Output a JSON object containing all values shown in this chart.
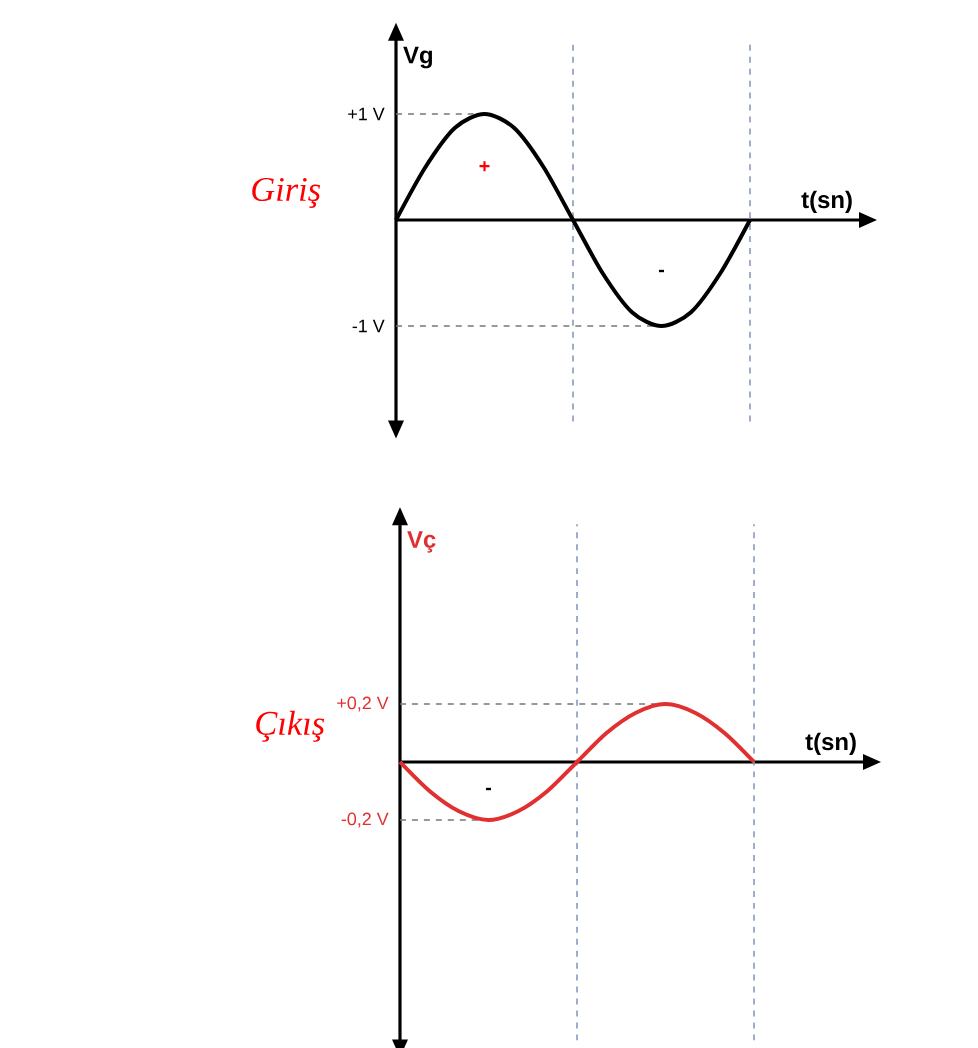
{
  "chart_data": [
    {
      "type": "line",
      "ylabel": "Vg",
      "xlabel": "t(sn)",
      "categories": [
        null,
        null,
        null,
        null,
        null,
        null,
        null,
        null,
        null,
        null,
        null,
        null,
        null
      ],
      "series": [
        {
          "color": "#000000",
          "values": [
            0,
            0.5,
            0.87,
            1,
            0.87,
            0.5,
            0,
            -0.5,
            -0.87,
            -1,
            -0.87,
            -0.5,
            0
          ]
        }
      ],
      "ylim": [
        -1.9,
        1.7
      ],
      "yticks": [
        {
          "value": 1,
          "label": "+1 V"
        },
        {
          "value": -1,
          "label": "-1 V"
        }
      ],
      "tick_labels": "y",
      "ref_lines": [
        {
          "axis": "y",
          "value": 1,
          "line_style": "dashed",
          "color": "#777777"
        },
        {
          "axis": "y",
          "value": -1,
          "line_style": "dashed",
          "color": "#777777"
        }
      ],
      "annotations": [
        "Giriş",
        "+",
        "-"
      ]
    },
    {
      "type": "line",
      "ylabel": "Vç",
      "xlabel": "t(sn)",
      "categories": [
        null,
        null,
        null,
        null,
        null,
        null,
        null,
        null,
        null,
        null,
        null,
        null,
        null
      ],
      "series": [
        {
          "color": "#e03030",
          "values": [
            0,
            -0.1,
            -0.17,
            -0.2,
            -0.17,
            -0.1,
            0,
            0.1,
            0.17,
            0.2,
            0.17,
            0.1,
            0
          ]
        }
      ],
      "ylim": [
        -0.96,
        0.82
      ],
      "yticks": [
        {
          "value": 0.2,
          "label": "+0,2 V"
        },
        {
          "value": -0.2,
          "label": "-0,2 V"
        }
      ],
      "tick_labels": "y",
      "ref_lines": [
        {
          "axis": "y",
          "value": 0.2,
          "line_style": "dashed",
          "color": "#777777"
        },
        {
          "axis": "y",
          "value": -0.2,
          "line_style": "dashed",
          "color": "#777777"
        }
      ],
      "annotations": [
        "Çıkış",
        "-"
      ]
    }
  ]
}
